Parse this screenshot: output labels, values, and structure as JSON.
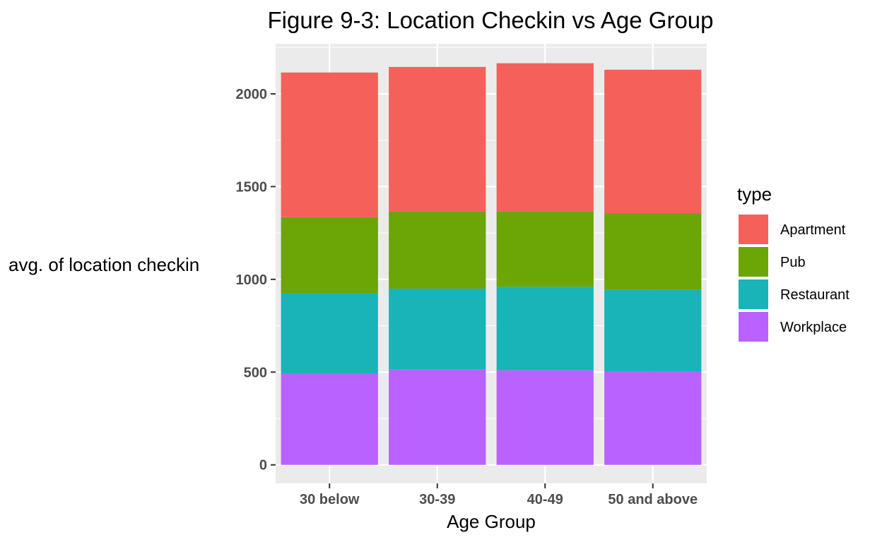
{
  "chart_data": {
    "type": "bar",
    "stacked": true,
    "title": "Figure 9-3: Location Checkin vs Age Group",
    "xlabel": "Age Group",
    "ylabel": "avg. of location checkin",
    "categories": [
      "30 below",
      "30-39",
      "40-49",
      "50 and above"
    ],
    "ylim": [
      -100,
      2270
    ],
    "yticks": [
      0,
      500,
      1000,
      1500,
      2000
    ],
    "yticks_labels": [
      "0",
      "500",
      "1000",
      "1500",
      "2000"
    ],
    "grid": true,
    "panel_background": "#ebebeb",
    "legend": {
      "title": "type",
      "placement": "right"
    },
    "series": [
      {
        "name": "Workplace",
        "color": "#b962ff",
        "values": [
          490,
          515,
          510,
          505
        ]
      },
      {
        "name": "Restaurant",
        "color": "#18b4b8",
        "values": [
          435,
          435,
          450,
          440
        ]
      },
      {
        "name": "Pub",
        "color": "#6ba506",
        "values": [
          410,
          415,
          405,
          410
        ]
      },
      {
        "name": "Apartment",
        "color": "#f5605b",
        "values": [
          780,
          780,
          800,
          775
        ]
      }
    ],
    "legend_order": [
      "Apartment",
      "Pub",
      "Restaurant",
      "Workplace"
    ]
  }
}
